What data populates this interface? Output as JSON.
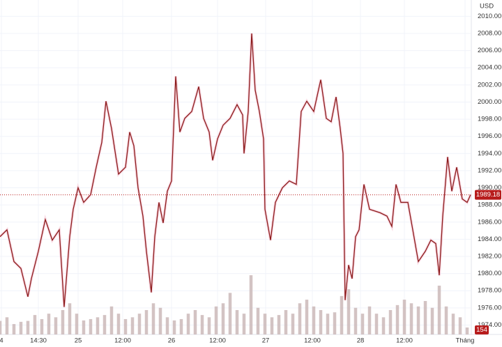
{
  "chart_data": {
    "type": "line",
    "y_unit": "USD",
    "grid": true,
    "xlim": [
      0,
      135
    ],
    "xticks": [
      {
        "value": 0.4,
        "label": "4"
      },
      {
        "value": 11,
        "label": "14:30"
      },
      {
        "value": 22.4,
        "label": "25"
      },
      {
        "value": 35.2,
        "label": "12:00"
      },
      {
        "value": 49.2,
        "label": "26"
      },
      {
        "value": 62.4,
        "label": "12:00"
      },
      {
        "value": 76.2,
        "label": "27"
      },
      {
        "value": 89.6,
        "label": "12:00"
      },
      {
        "value": 103.4,
        "label": "28"
      },
      {
        "value": 116,
        "label": "12:00"
      },
      {
        "value": 133.4,
        "label": "Tháng"
      }
    ],
    "ylim": [
      1972.9,
      2011.9
    ],
    "yticks": [
      {
        "value": 1974,
        "label": "1974.00"
      },
      {
        "value": 1976,
        "label": "1976.00"
      },
      {
        "value": 1978,
        "label": "1978.00"
      },
      {
        "value": 1980,
        "label": "1980.00"
      },
      {
        "value": 1982,
        "label": "1982.00"
      },
      {
        "value": 1984,
        "label": "1984.00"
      },
      {
        "value": 1986,
        "label": "1986.00"
      },
      {
        "value": 1988,
        "label": "1988.00"
      },
      {
        "value": 1990,
        "label": "1990.00"
      },
      {
        "value": 1992,
        "label": "1992.00"
      },
      {
        "value": 1994,
        "label": "1994.00"
      },
      {
        "value": 1996,
        "label": "1996.00"
      },
      {
        "value": 1998,
        "label": "1998.00"
      },
      {
        "value": 2000,
        "label": "2000.00"
      },
      {
        "value": 2002,
        "label": "2002.00"
      },
      {
        "value": 2004,
        "label": "2004.00"
      },
      {
        "value": 2006,
        "label": "2006.00"
      },
      {
        "value": 2008,
        "label": "2008.00"
      },
      {
        "value": 2010,
        "label": "2010.00"
      }
    ],
    "x": [
      0,
      2,
      4,
      6,
      8,
      9,
      11,
      13,
      15,
      17,
      18.4,
      20,
      21,
      22.4,
      24,
      26,
      27.6,
      29.2,
      30.4,
      32,
      34,
      36,
      37.2,
      38.4,
      39.6,
      41,
      42,
      43.4,
      44.4,
      45.6,
      46.8,
      48,
      49.2,
      50.4,
      51.6,
      53,
      55,
      57,
      58.4,
      60,
      61,
      62.4,
      64,
      66,
      68,
      69.6,
      70,
      71.2,
      72.2,
      73.2,
      74.4,
      75.6,
      76,
      77.6,
      79,
      81,
      83,
      85,
      86.4,
      88,
      90,
      92,
      93.6,
      95,
      96.4,
      97.6,
      98.4,
      99,
      100,
      101,
      102,
      103,
      104.4,
      106,
      109,
      111,
      112.4,
      113.6,
      115,
      117,
      118.4,
      120,
      122,
      123.6,
      125,
      126,
      127,
      128.4,
      129.6,
      131,
      132.6,
      134,
      135
    ],
    "series": [
      {
        "color": "#8b1a1a",
        "values": [
          1984.3,
          1985.1,
          1981.4,
          1980.6,
          1977.3,
          1979.4,
          1982.6,
          1986.3,
          1983.9,
          1985.1,
          1976.1,
          1984.3,
          1987.5,
          1990.0,
          1988.3,
          1989.2,
          1992.4,
          1995.3,
          2000.1,
          1996.9,
          1991.6,
          1992.4,
          1996.5,
          1994.9,
          1990.0,
          1986.7,
          1982.6,
          1977.8,
          1984.3,
          1988.3,
          1985.9,
          1989.6,
          1990.8,
          2003.0,
          1996.5,
          1998.1,
          1998.9,
          2001.8,
          1998.1,
          1996.5,
          1993.2,
          1995.7,
          1997.3,
          1998.1,
          1999.7,
          1998.5,
          1994.0,
          1998.9,
          2008.0,
          2001.4,
          1998.9,
          1995.7,
          1987.5,
          1983.9,
          1988.3,
          1990.0,
          1990.8,
          1990.4,
          1998.9,
          2000.1,
          1998.9,
          2002.6,
          1998.1,
          1997.7,
          2000.6,
          1996.9,
          1994.0,
          1976.9,
          1981.0,
          1979.4,
          1984.3,
          1985.1,
          1990.4,
          1987.5,
          1987.1,
          1986.7,
          1985.5,
          1990.4,
          1988.3,
          1988.3,
          1985.1,
          1981.4,
          1982.6,
          1983.9,
          1983.5,
          1979.8,
          1986.7,
          1993.6,
          1989.6,
          1992.4,
          1988.7,
          1988.3,
          1989.2
        ]
      }
    ],
    "last_price": 1989.18,
    "last_price_color": "#b71c1c",
    "volume": {
      "type": "bar",
      "color": "#c8b4b4",
      "ylim": [
        0,
        7400
      ],
      "x": [
        0,
        2,
        4,
        6,
        8,
        10,
        12,
        14,
        16,
        18,
        20,
        22,
        24,
        26,
        28,
        30,
        32,
        34,
        36,
        38,
        40,
        42,
        44,
        46,
        48,
        50,
        52,
        54,
        56,
        58,
        60,
        62,
        64,
        66,
        68,
        70,
        72,
        74,
        76,
        78,
        80,
        82,
        84,
        86,
        88,
        90,
        92,
        94,
        96,
        98,
        100,
        102,
        104,
        106,
        108,
        110,
        112,
        114,
        116,
        118,
        120,
        122,
        124,
        126,
        128,
        130,
        132,
        134
      ],
      "values": [
        300,
        380,
        230,
        280,
        300,
        430,
        340,
        460,
        380,
        540,
        690,
        460,
        310,
        340,
        380,
        430,
        620,
        460,
        340,
        380,
        460,
        540,
        690,
        590,
        380,
        310,
        340,
        460,
        540,
        430,
        380,
        620,
        690,
        920,
        540,
        460,
        1310,
        590,
        460,
        380,
        430,
        540,
        460,
        690,
        770,
        620,
        540,
        460,
        490,
        850,
        1000,
        590,
        460,
        620,
        460,
        380,
        540,
        650,
        770,
        690,
        620,
        740,
        590,
        1080,
        620,
        460,
        380,
        154
      ],
      "last_volume": 154
    }
  }
}
